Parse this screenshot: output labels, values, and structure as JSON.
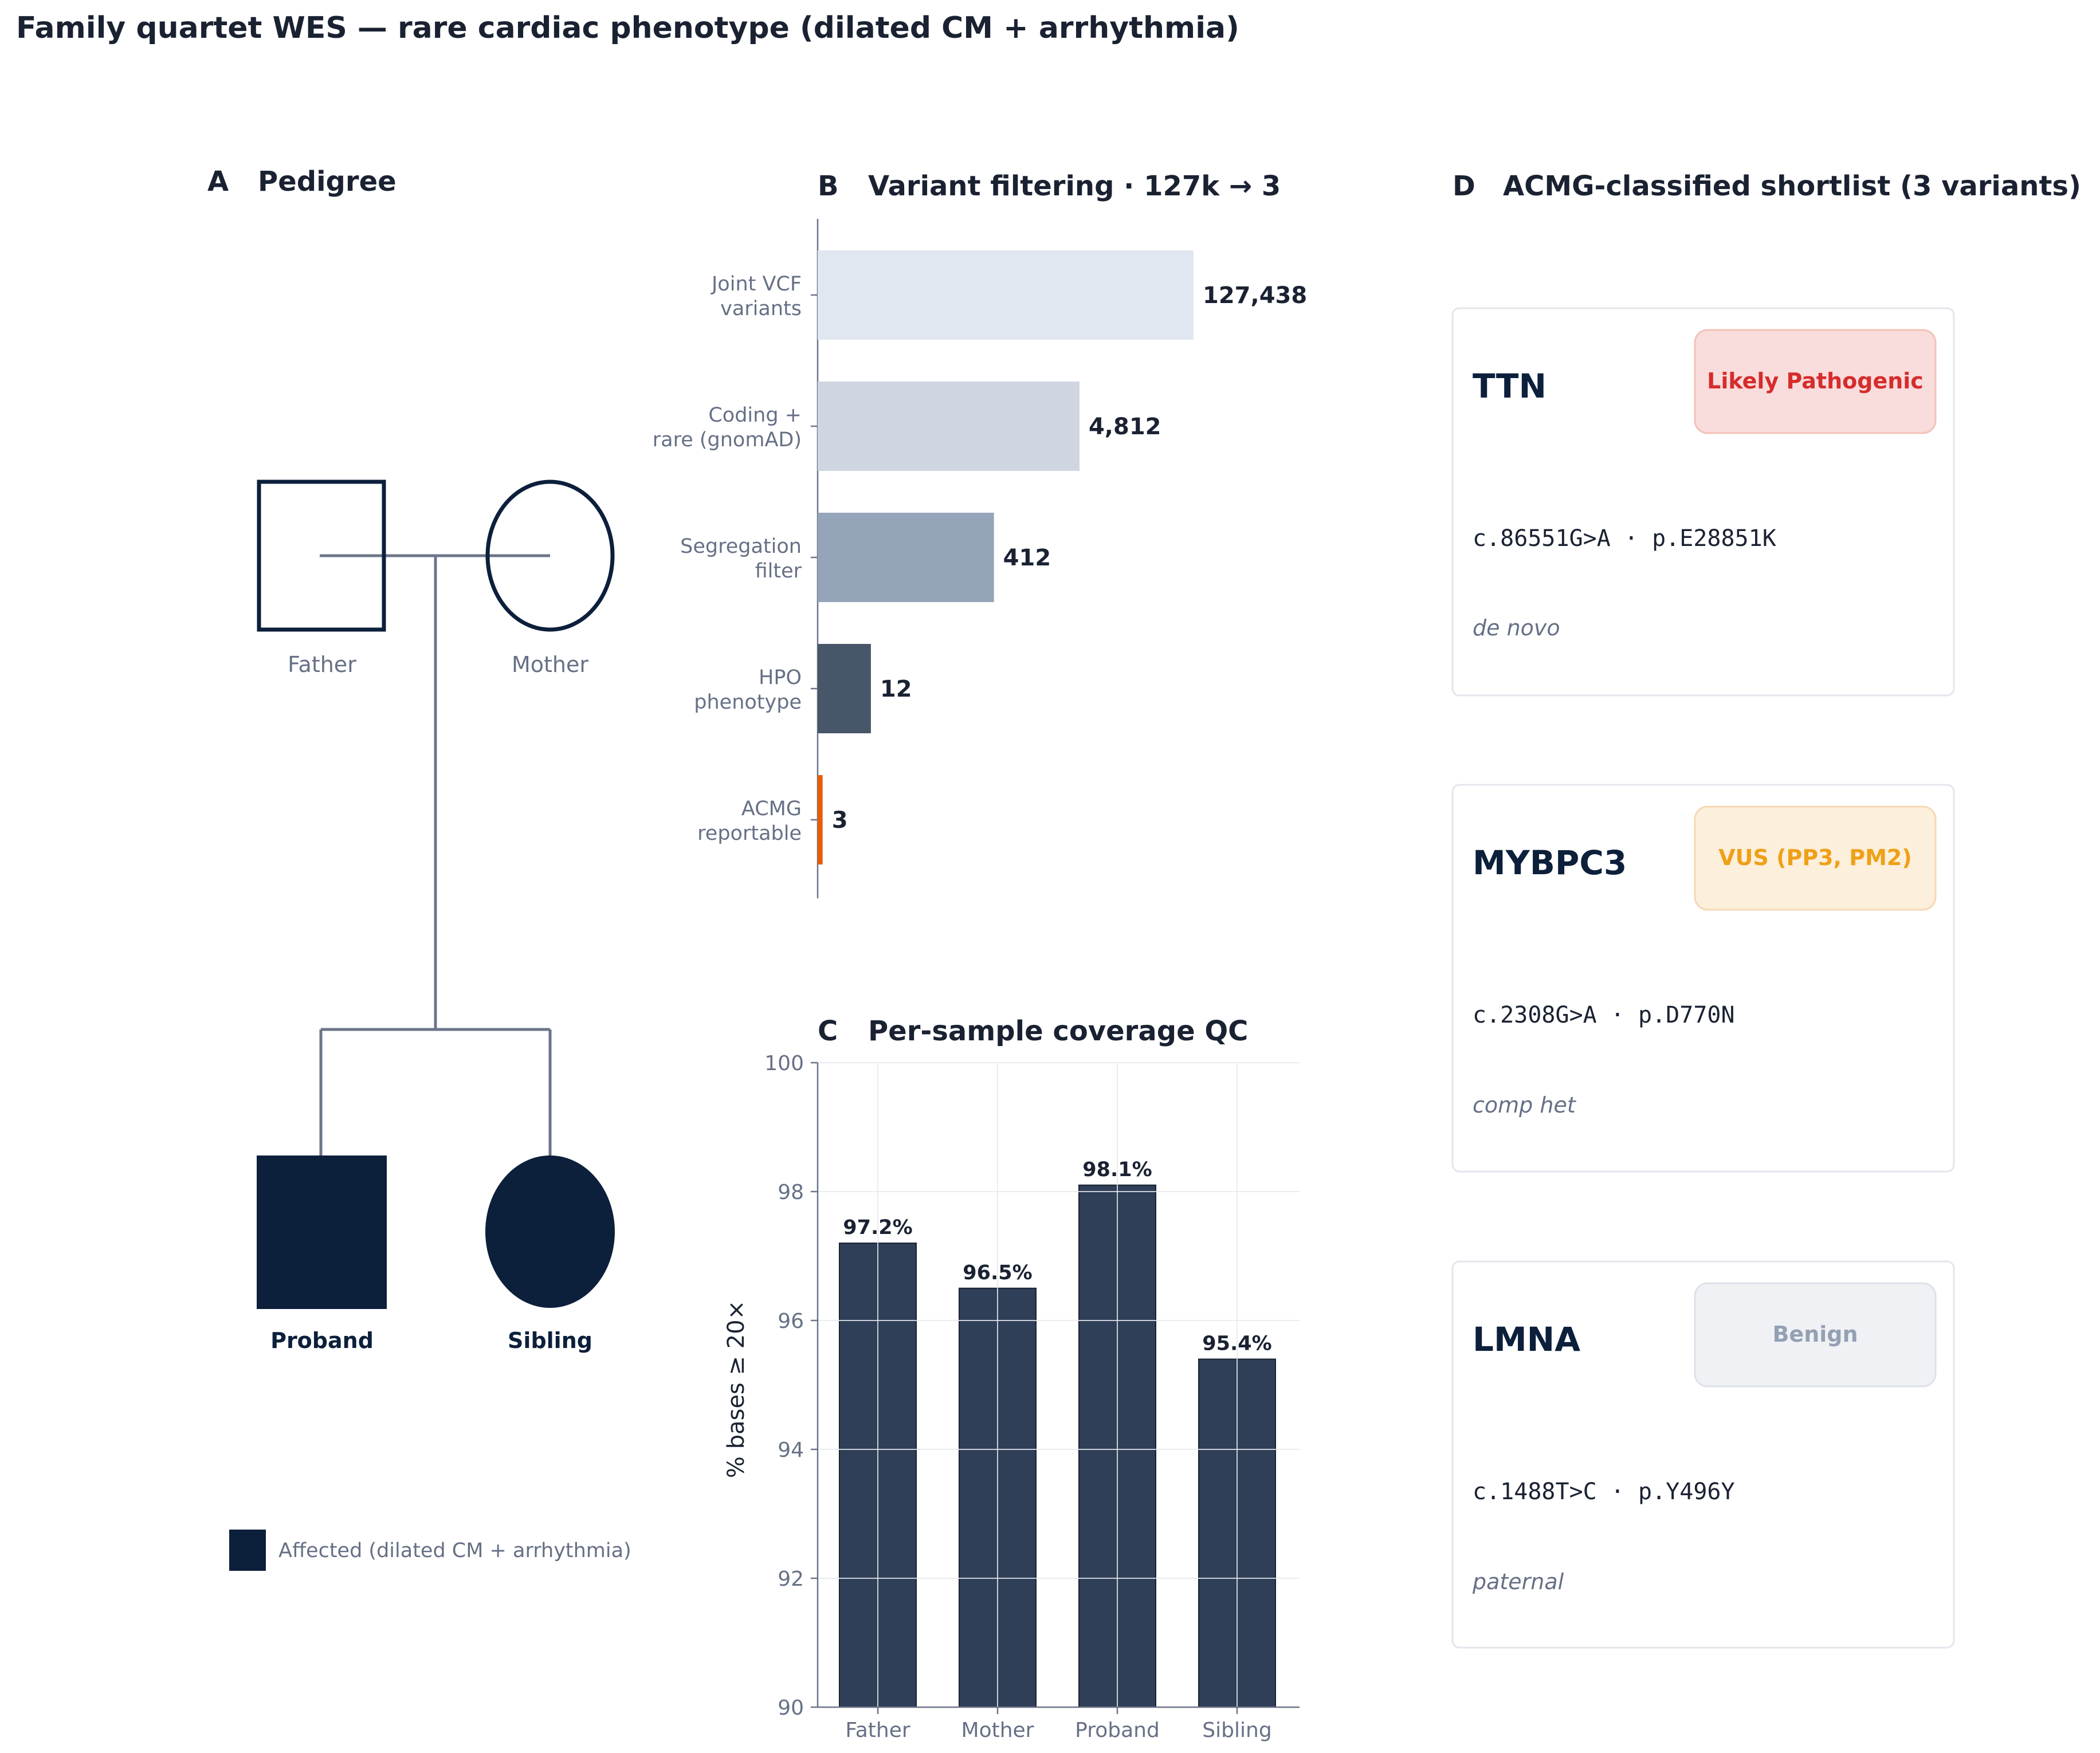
{
  "title": "Family quartet WES — rare cardiac phenotype (dilated CM + arrhythmia)",
  "colors": {
    "navy": "#0c1f3b",
    "line": "#6c7589",
    "muted": "#667085",
    "accent": "#e85d04",
    "coverage_bar": "#2f3f57"
  },
  "pedigree": {
    "letter": "A",
    "title": "Pedigree",
    "members": [
      {
        "label": "Father",
        "shape": "square",
        "affected": false
      },
      {
        "label": "Mother",
        "shape": "circle",
        "affected": false
      },
      {
        "label": "Proband",
        "shape": "square",
        "affected": true
      },
      {
        "label": "Sibling",
        "shape": "circle",
        "affected": true
      }
    ],
    "legend": "Affected (dilated CM + arrhythmia)"
  },
  "chart_data": [
    {
      "type": "bar",
      "orientation": "horizontal",
      "letter": "B",
      "title": "Variant filtering · 127k → 3",
      "categories": [
        "Joint VCF\nvariants",
        "Coding +\nrare (gnomAD)",
        "Segregation\nfilter",
        "HPO\nphenotype",
        "ACMG\nreportable"
      ],
      "values": [
        127438,
        4812,
        412,
        12,
        3
      ],
      "value_labels": [
        "127,438",
        "4,812",
        "412",
        "12",
        "3"
      ],
      "bar_colors": [
        "#e1e7f0",
        "#cfd6e1",
        "#95a4b8",
        "#475668",
        "#e85d04"
      ],
      "scale": "log",
      "xlim": [
        2.6,
        127438
      ]
    },
    {
      "type": "bar",
      "letter": "C",
      "title": "Per-sample coverage QC",
      "categories": [
        "Father",
        "Mother",
        "Proband",
        "Sibling"
      ],
      "values": [
        97.2,
        96.5,
        98.1,
        95.4
      ],
      "value_labels": [
        "97.2%",
        "96.5%",
        "98.1%",
        "95.4%"
      ],
      "ylabel": "% bases ≥ 20×",
      "ylim": [
        90,
        100
      ],
      "yticks": [
        90,
        92,
        94,
        96,
        98,
        100
      ],
      "grid": true
    }
  ],
  "shortlist": {
    "letter": "D",
    "title": "ACMG-classified shortlist (3 variants)",
    "variants": [
      {
        "gene": "TTN",
        "classification": "Likely Pathogenic",
        "hgvs": "c.86551G>A · p.E28851K",
        "inheritance": "de novo",
        "badge_bg": "#f9dcdc",
        "badge_border": "#f3c2b8",
        "badge_text": "#d62c2c"
      },
      {
        "gene": "MYBPC3",
        "classification": "VUS (PP3, PM2)",
        "hgvs": "c.2308G>A · p.D770N",
        "inheritance": "comp het",
        "badge_bg": "#fcefdb",
        "badge_border": "#f6d8b4",
        "badge_text": "#efa018"
      },
      {
        "gene": "LMNA",
        "classification": "Benign",
        "hgvs": "c.1488T>C · p.Y496Y",
        "inheritance": "paternal",
        "badge_bg": "#eff1f5",
        "badge_border": "#dde1e8",
        "badge_text": "#94a0b3"
      }
    ]
  }
}
